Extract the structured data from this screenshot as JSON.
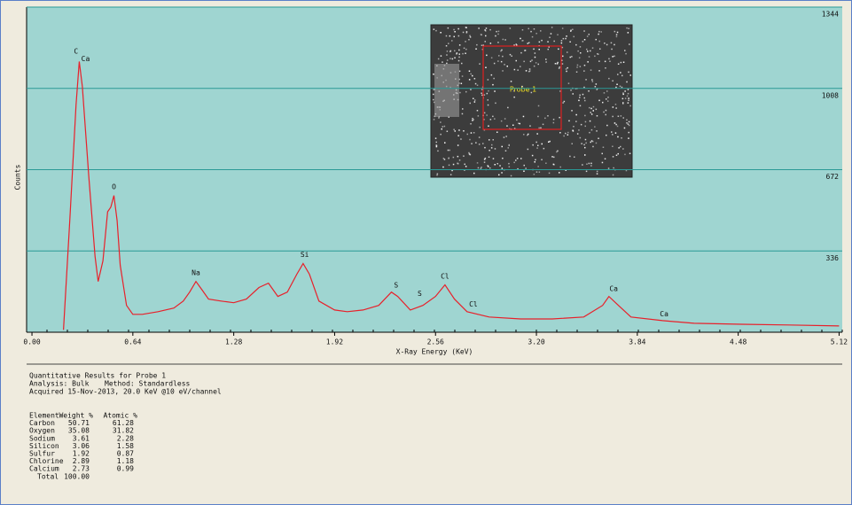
{
  "chart_data": {
    "type": "line",
    "y_label": "Counts",
    "x_label": "X-Ray Energy (KeV)",
    "x": [
      0.2,
      0.24,
      0.28,
      0.3,
      0.32,
      0.36,
      0.4,
      0.42,
      0.45,
      0.48,
      0.5,
      0.52,
      0.54,
      0.56,
      0.6,
      0.64,
      0.7,
      0.8,
      0.9,
      0.96,
      1.0,
      1.04,
      1.08,
      1.12,
      1.2,
      1.28,
      1.36,
      1.44,
      1.5,
      1.56,
      1.62,
      1.68,
      1.72,
      1.76,
      1.82,
      1.92,
      2.0,
      2.1,
      2.2,
      2.28,
      2.32,
      2.4,
      2.48,
      2.56,
      2.62,
      2.68,
      2.76,
      2.9,
      3.1,
      3.3,
      3.5,
      3.62,
      3.66,
      3.72,
      3.8,
      4.0,
      4.2,
      4.5,
      4.8,
      5.12
    ],
    "values": [
      10,
      461,
      941,
      1119,
      1015,
      646,
      314,
      210,
      295,
      498,
      517,
      565,
      461,
      277,
      111,
      74,
      74,
      85,
      100,
      129,
      166,
      210,
      174,
      137,
      129,
      122,
      137,
      185,
      203,
      148,
      166,
      240,
      284,
      240,
      129,
      92,
      85,
      92,
      111,
      166,
      148,
      92,
      111,
      148,
      196,
      137,
      85,
      63,
      55,
      55,
      63,
      111,
      148,
      111,
      63,
      48,
      37,
      33,
      30,
      26
    ],
    "color": "#e8202a",
    "xlim": [
      -0.034,
      5.14
    ],
    "ylim": [
      0,
      1344
    ],
    "xticks": [
      {
        "value": 0,
        "label": "0.00"
      },
      0.64,
      1.28,
      1.92,
      2.56,
      {
        "value": 3.2,
        "label": "3.20"
      },
      3.84,
      4.48,
      5.12
    ],
    "yticks": [
      336,
      672,
      1008,
      1344
    ],
    "grid": true,
    "annotations": [
      {
        "text": "C",
        "x": 0.28,
        "y": 1160
      },
      {
        "text": "Ca",
        "x": 0.34,
        "y": 1130
      },
      {
        "text": "O",
        "x": 0.52,
        "y": 600
      },
      {
        "text": "Na",
        "x": 1.04,
        "y": 245
      },
      {
        "text": "Si",
        "x": 1.73,
        "y": 320
      },
      {
        "text": "S",
        "x": 2.31,
        "y": 195
      },
      {
        "text": "S",
        "x": 2.46,
        "y": 160
      },
      {
        "text": "Cl",
        "x": 2.62,
        "y": 230
      },
      {
        "text": "Cl",
        "x": 2.8,
        "y": 115
      },
      {
        "text": "Ca",
        "x": 3.69,
        "y": 180
      },
      {
        "text": "Ca",
        "x": 4.01,
        "y": 75
      }
    ]
  },
  "inset": {
    "label": "Probe 1"
  },
  "results": {
    "title": "Quantitative Results for Probe 1",
    "analysis": "Analysis: Bulk",
    "method": "Method: Standardless",
    "acquired": "Acquired 15-Nov-2013, 20.0 KeV @10 eV/channel",
    "columns": [
      "Element",
      "Weight %",
      "Atomic %"
    ],
    "rows": [
      [
        "Carbon",
        "50.71",
        "61.28"
      ],
      [
        "Oxygen",
        "35.08",
        "31.82"
      ],
      [
        "Sodium",
        "3.61",
        "2.28"
      ],
      [
        "Silicon",
        "3.06",
        "1.58"
      ],
      [
        "Sulfur",
        "1.92",
        "0.87"
      ],
      [
        "Chlorine",
        "2.89",
        "1.18"
      ],
      [
        "Calcium",
        "2.73",
        "0.99"
      ]
    ],
    "total": [
      "Total",
      "100.00"
    ]
  }
}
